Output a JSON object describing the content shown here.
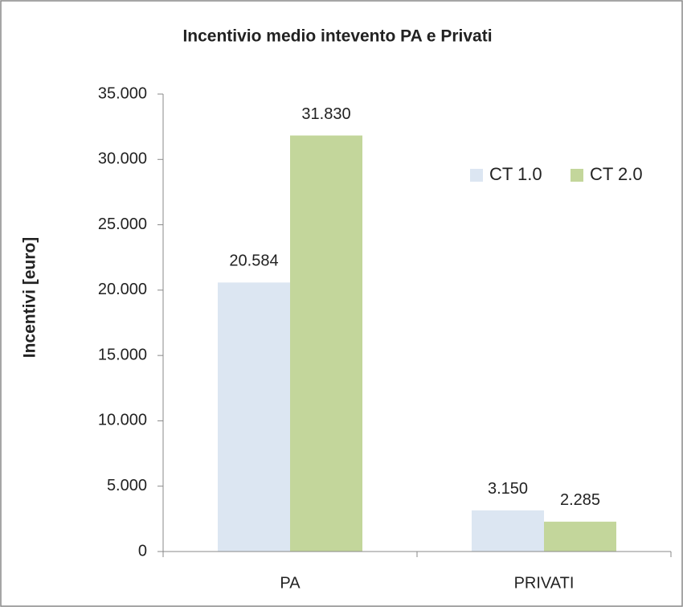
{
  "chart_data": {
    "type": "bar",
    "title": "Incentivio medio intevento PA e Privati",
    "y_label": "Incentivi [euro]",
    "categories": [
      "PA",
      "PRIVATI"
    ],
    "series": [
      {
        "name": "CT 1.0",
        "color": "#dce6f2",
        "values": [
          20584,
          3150
        ],
        "value_labels": [
          "20.584",
          "3.150"
        ]
      },
      {
        "name": "CT 2.0",
        "color": "#c3d69b",
        "values": [
          31830,
          2285
        ],
        "value_labels": [
          "31.830",
          "2.285"
        ]
      }
    ],
    "ylim": [
      0,
      35000
    ],
    "yticks": [
      0,
      {
        "value": 5000,
        "label": "5.000"
      },
      {
        "value": 10000,
        "label": "10.000"
      },
      {
        "value": 15000,
        "label": "15.000"
      },
      {
        "value": 20000,
        "label": "20.000"
      },
      {
        "value": 25000,
        "label": "25.000"
      },
      {
        "value": 30000,
        "label": "30.000"
      },
      {
        "value": 35000,
        "label": "35.000"
      }
    ],
    "grid": false,
    "legend": "upper right"
  }
}
